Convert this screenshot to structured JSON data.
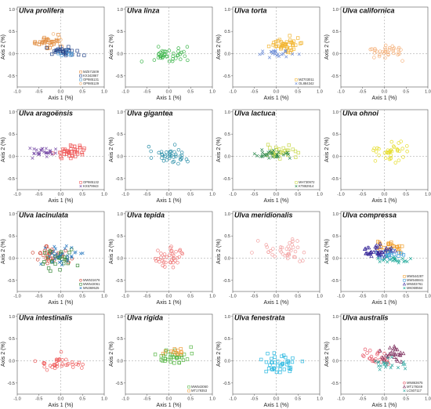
{
  "figure": {
    "x_ticks": [
      "-1.0",
      "-0.5",
      "0.0",
      "0.5",
      "1.0"
    ],
    "y_ticks": [
      "1.0",
      "0.5",
      "0.0",
      "-0.5"
    ]
  },
  "chart_data": [
    {
      "type": "scatter",
      "title": "Ulva prolifera",
      "xlabel": "Axis 1 (%)",
      "ylabel": "Axis 2 (%)",
      "xlim": [
        -1.0,
        1.0
      ],
      "ylim": [
        -0.75,
        1.05
      ],
      "series": [
        {
          "name": "MZ571509",
          "marker": "square",
          "color": "#e08a3c",
          "count": 30,
          "center": [
            -0.3,
            0.25
          ],
          "spread": [
            0.3,
            0.12
          ]
        },
        {
          "name": "KX342867",
          "marker": "square",
          "color": "#2b4a8c",
          "count": 34,
          "center": [
            0.05,
            0.05
          ],
          "spread": [
            0.35,
            0.1
          ]
        },
        {
          "name": "OP985131",
          "marker": "square",
          "color": "#4a9ad6",
          "count": 6,
          "center": [
            0.2,
            0.0
          ],
          "spread": [
            0.25,
            0.08
          ]
        },
        {
          "name": "OP985129",
          "marker": "circle",
          "color": "#f0b070",
          "count": 6,
          "center": [
            -0.1,
            0.3
          ],
          "spread": [
            0.3,
            0.1
          ]
        }
      ]
    },
    {
      "type": "scatter",
      "title": "Ulva linza",
      "xlabel": "Axis 1 (%)",
      "ylabel": "Axis 2 (%)",
      "xlim": [
        -1.0,
        1.0
      ],
      "ylim": [
        -0.75,
        1.05
      ],
      "series": [
        {
          "name": "",
          "marker": "circle",
          "color": "#3bb54a",
          "count": 40,
          "center": [
            0.0,
            -0.05
          ],
          "spread": [
            0.45,
            0.2
          ]
        }
      ]
    },
    {
      "type": "scatter",
      "title": "Ulva torta",
      "xlabel": "Axis 1 (%)",
      "ylabel": "Axis 2 (%)",
      "xlim": [
        -1.0,
        1.0
      ],
      "ylim": [
        -0.75,
        1.05
      ],
      "series": [
        {
          "name": "MZ703011",
          "marker": "square",
          "color": "#f2b531",
          "count": 45,
          "center": [
            0.2,
            0.2
          ],
          "spread": [
            0.35,
            0.15
          ]
        },
        {
          "name": "OL884342",
          "marker": "cross",
          "color": "#6f8fd8",
          "count": 22,
          "center": [
            0.0,
            0.0
          ],
          "spread": [
            0.4,
            0.1
          ]
        }
      ]
    },
    {
      "type": "scatter",
      "title": "Ulva californica",
      "xlabel": "Axis 1 (%)",
      "ylabel": "Axis 2 (%)",
      "xlim": [
        -1.0,
        1.0
      ],
      "ylim": [
        -0.75,
        1.05
      ],
      "series": [
        {
          "name": "",
          "marker": "circle",
          "color": "#f5b37e",
          "count": 35,
          "center": [
            0.05,
            0.05
          ],
          "spread": [
            0.45,
            0.15
          ]
        }
      ]
    },
    {
      "type": "scatter",
      "title": "Ulva aragoënsis",
      "xlabel": "Axis 1 (%)",
      "ylabel": "Axis 2 (%)",
      "xlim": [
        -1.0,
        1.0
      ],
      "ylim": [
        -0.75,
        1.05
      ],
      "series": [
        {
          "name": "OP985132",
          "marker": "square",
          "color": "#ef5b5b",
          "count": 40,
          "center": [
            0.25,
            0.1
          ],
          "spread": [
            0.35,
            0.15
          ]
        },
        {
          "name": "KX579943",
          "marker": "cross",
          "color": "#7a4fa8",
          "count": 30,
          "center": [
            -0.35,
            0.1
          ],
          "spread": [
            0.3,
            0.12
          ]
        }
      ]
    },
    {
      "type": "scatter",
      "title": "Ulva gigantea",
      "xlabel": "Axis 1 (%)",
      "ylabel": "Axis 2 (%)",
      "xlim": [
        -1.0,
        1.0
      ],
      "ylim": [
        -0.75,
        1.05
      ],
      "series": [
        {
          "name": "",
          "marker": "circle",
          "color": "#2a8fa8",
          "count": 38,
          "center": [
            0.0,
            0.0
          ],
          "spread": [
            0.45,
            0.2
          ]
        }
      ]
    },
    {
      "type": "scatter",
      "title": "Ulva lactuca",
      "xlabel": "Axis 1 (%)",
      "ylabel": "Axis 2 (%)",
      "xlim": [
        -1.0,
        1.0
      ],
      "ylim": [
        -0.75,
        1.05
      ],
      "series": [
        {
          "name": "MH730972",
          "marker": "square",
          "color": "#c8d84a",
          "count": 30,
          "center": [
            0.1,
            0.1
          ],
          "spread": [
            0.35,
            0.15
          ]
        },
        {
          "name": "KT882914",
          "marker": "cross",
          "color": "#2e8a4f",
          "count": 30,
          "center": [
            -0.1,
            0.05
          ],
          "spread": [
            0.4,
            0.12
          ]
        }
      ]
    },
    {
      "type": "scatter",
      "title": "Ulva ohnoi",
      "xlabel": "Axis 1 (%)",
      "ylabel": "Axis 2 (%)",
      "xlim": [
        -1.0,
        1.0
      ],
      "ylim": [
        -0.75,
        1.05
      ],
      "series": [
        {
          "name": "",
          "marker": "circle",
          "color": "#e6dd2a",
          "count": 38,
          "center": [
            0.15,
            0.1
          ],
          "spread": [
            0.45,
            0.2
          ]
        }
      ]
    },
    {
      "type": "scatter",
      "title": "Ulva lacinulata",
      "xlabel": "Axis 1 (%)",
      "ylabel": "Axis 2 (%)",
      "xlim": [
        -1.0,
        1.0
      ],
      "ylim": [
        -0.75,
        1.05
      ],
      "series": [
        {
          "name": "MW531676",
          "marker": "circle",
          "color": "#d04a3a",
          "count": 35,
          "center": [
            -0.15,
            0.05
          ],
          "spread": [
            0.4,
            0.2
          ]
        },
        {
          "name": "MW543061",
          "marker": "square",
          "color": "#3a8a3a",
          "count": 30,
          "center": [
            -0.05,
            0.0
          ],
          "spread": [
            0.4,
            0.2
          ]
        },
        {
          "name": "MN369525",
          "marker": "cross",
          "color": "#2a7ac0",
          "count": 30,
          "center": [
            0.05,
            0.05
          ],
          "spread": [
            0.45,
            0.2
          ]
        }
      ]
    },
    {
      "type": "scatter",
      "title": "Ulva tepida",
      "xlabel": "Axis 1 (%)",
      "ylabel": "Axis 2 (%)",
      "xlim": [
        -1.0,
        1.0
      ],
      "ylim": [
        -0.75,
        1.05
      ],
      "series": [
        {
          "name": "",
          "marker": "circle",
          "color": "#f07a7a",
          "count": 38,
          "center": [
            0.05,
            0.0
          ],
          "spread": [
            0.4,
            0.2
          ]
        }
      ]
    },
    {
      "type": "scatter",
      "title": "Ulva meridionalis",
      "xlabel": "Axis 1 (%)",
      "ylabel": "Axis 2 (%)",
      "xlim": [
        -1.0,
        1.0
      ],
      "ylim": [
        -0.75,
        1.05
      ],
      "series": [
        {
          "name": "",
          "marker": "circle",
          "color": "#f2a0a0",
          "count": 38,
          "center": [
            0.15,
            0.15
          ],
          "spread": [
            0.45,
            0.2
          ]
        }
      ]
    },
    {
      "type": "scatter",
      "title": "Ulva compressa",
      "xlabel": "Axis 1 (%)",
      "ylabel": "Axis 2 (%)",
      "xlim": [
        -1.0,
        1.0
      ],
      "ylim": [
        -0.75,
        1.05
      ],
      "series": [
        {
          "name": "MW544287",
          "marker": "square",
          "color": "#f0a030",
          "count": 28,
          "center": [
            0.15,
            0.25
          ],
          "spread": [
            0.4,
            0.12
          ]
        },
        {
          "name": "MW548841",
          "marker": "square",
          "color": "#3a9ad8",
          "count": 20,
          "center": [
            0.1,
            0.1
          ],
          "spread": [
            0.4,
            0.12
          ]
        },
        {
          "name": "MN503761",
          "marker": "triangle",
          "color": "#3a2a9a",
          "count": 38,
          "center": [
            -0.15,
            0.15
          ],
          "spread": [
            0.45,
            0.15
          ]
        },
        {
          "name": "MK069564",
          "marker": "cross",
          "color": "#1aa898",
          "count": 22,
          "center": [
            0.25,
            -0.05
          ],
          "spread": [
            0.4,
            0.12
          ]
        }
      ]
    },
    {
      "type": "scatter",
      "title": "Ulva intestinalis",
      "xlabel": "Axis 1 (%)",
      "ylabel": "Axis 2 (%)",
      "xlim": [
        -1.0,
        1.0
      ],
      "ylim": [
        -0.75,
        1.05
      ],
      "series": [
        {
          "name": "",
          "marker": "circle",
          "color": "#ef5f5f",
          "count": 38,
          "center": [
            0.05,
            -0.05
          ],
          "spread": [
            0.45,
            0.18
          ]
        }
      ]
    },
    {
      "type": "scatter",
      "title": "Ulva rigida",
      "xlabel": "Axis 1 (%)",
      "ylabel": "Axis 2 (%)",
      "xlim": [
        -1.0,
        1.0
      ],
      "ylim": [
        -0.75,
        1.05
      ],
      "series": [
        {
          "name": "MW543060",
          "marker": "square",
          "color": "#5ab848",
          "count": 38,
          "center": [
            0.05,
            0.1
          ],
          "spread": [
            0.4,
            0.15
          ]
        },
        {
          "name": "MT179353",
          "marker": "square",
          "color": "#f0a040",
          "count": 12,
          "center": [
            0.1,
            0.2
          ],
          "spread": [
            0.35,
            0.12
          ]
        }
      ]
    },
    {
      "type": "scatter",
      "title": "Ulva fenestrata",
      "xlabel": "Axis 1 (%)",
      "ylabel": "Axis 2 (%)",
      "xlim": [
        -1.0,
        1.0
      ],
      "ylim": [
        -0.75,
        1.05
      ],
      "series": [
        {
          "name": "",
          "marker": "square",
          "color": "#2ab8e0",
          "count": 40,
          "center": [
            0.1,
            -0.05
          ],
          "spread": [
            0.45,
            0.2
          ]
        }
      ]
    },
    {
      "type": "scatter",
      "title": "Ulva australis",
      "xlabel": "Axis 1 (%)",
      "ylabel": "Axis 2 (%)",
      "xlim": [
        -1.0,
        1.0
      ],
      "ylim": [
        -0.75,
        1.05
      ],
      "series": [
        {
          "name": "MN863675",
          "marker": "circle",
          "color": "#e85a6a",
          "count": 28,
          "center": [
            -0.2,
            0.05
          ],
          "spread": [
            0.35,
            0.18
          ]
        },
        {
          "name": "MT179349",
          "marker": "triangle",
          "color": "#7a2a5a",
          "count": 25,
          "center": [
            0.2,
            0.15
          ],
          "spread": [
            0.35,
            0.15
          ]
        },
        {
          "name": "LC507117",
          "marker": "cross",
          "color": "#2aa8a0",
          "count": 22,
          "center": [
            0.1,
            -0.05
          ],
          "spread": [
            0.4,
            0.15
          ]
        }
      ]
    }
  ]
}
